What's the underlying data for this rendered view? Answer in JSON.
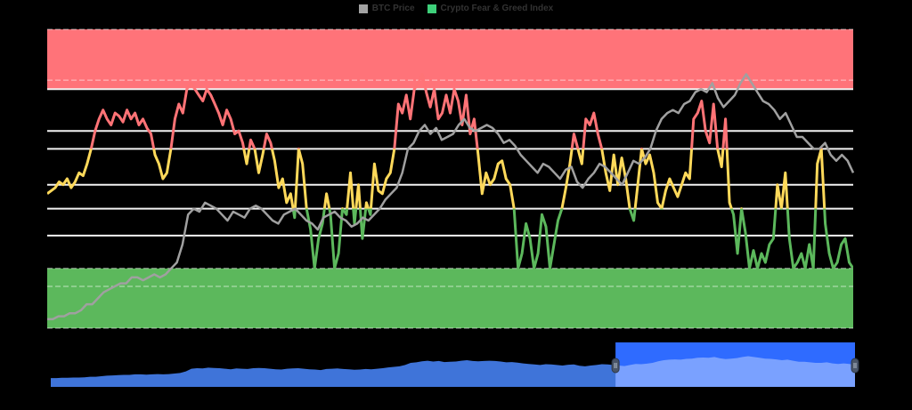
{
  "legend": [
    {
      "label": "BTC Price",
      "color": "#a3a3a3"
    },
    {
      "label": "Crypto Fear & Greed Index",
      "color": "#3ecf7a"
    }
  ],
  "colors": {
    "background": "#000000",
    "extreme_greed_band": "#ff7379",
    "extreme_fear_band": "#5cb85c",
    "greed_line": "#ff7376",
    "neutral_line": "#ffd95a",
    "fear_line": "#5cb85c",
    "btc_line": "#a0a0a0",
    "gridline": "#f2f2f2",
    "navigator_series": "#3f74d9",
    "navigator_selection": "#2f6bff",
    "navigator_selected_series": "#7aa1ff",
    "navigator_handle": "#4a5568"
  },
  "chart_data": {
    "type": "line",
    "title": "",
    "xlabel": "",
    "ylabel": "",
    "ylim": [
      0,
      100
    ],
    "grid": true,
    "legend_position": "top-center",
    "zones": [
      {
        "name": "Extreme Greed band",
        "from": 80,
        "to": 100,
        "color": "#ff7379"
      },
      {
        "name": "Extreme Fear band",
        "from": 0,
        "to": 20,
        "color": "#5cb85c"
      }
    ],
    "zone_line_colors": [
      {
        "range": [
          60,
          100
        ],
        "color": "#ff7376"
      },
      {
        "range": [
          40,
          60
        ],
        "color": "#ffd95a"
      },
      {
        "range": [
          0,
          40
        ],
        "color": "#5cb85c"
      }
    ],
    "gridlines": [
      80,
      66,
      60,
      48,
      40,
      31,
      20
    ],
    "series": [
      {
        "name": "Crypto Fear & Greed Index",
        "values": [
          45,
          46,
          47,
          49,
          48,
          50,
          47,
          49,
          52,
          51,
          55,
          60,
          66,
          70,
          73,
          70,
          68,
          72,
          71,
          69,
          73,
          70,
          72,
          68,
          70,
          67,
          65,
          58,
          55,
          50,
          52,
          60,
          70,
          75,
          72,
          80,
          82,
          80,
          78,
          76,
          80,
          78,
          75,
          72,
          68,
          73,
          70,
          65,
          66,
          62,
          55,
          63,
          60,
          52,
          58,
          65,
          62,
          56,
          47,
          50,
          42,
          45,
          37,
          60,
          55,
          40,
          33,
          20,
          30,
          35,
          45,
          38,
          20,
          25,
          40,
          38,
          52,
          35,
          48,
          30,
          42,
          38,
          55,
          46,
          45,
          50,
          52,
          60,
          75,
          72,
          78,
          70,
          80,
          82,
          85,
          79,
          74,
          80,
          70,
          72,
          78,
          72,
          80,
          76,
          68,
          78,
          65,
          70,
          58,
          45,
          52,
          48,
          50,
          55,
          56,
          50,
          48,
          40,
          20,
          25,
          35,
          30,
          20,
          25,
          38,
          34,
          20,
          28,
          36,
          40,
          47,
          55,
          65,
          60,
          55,
          70,
          68,
          72,
          65,
          60,
          52,
          46,
          58,
          48,
          57,
          50,
          40,
          36,
          48,
          60,
          55,
          58,
          52,
          42,
          40,
          46,
          50,
          47,
          44,
          48,
          52,
          50,
          70,
          72,
          76,
          66,
          62,
          75,
          60,
          54,
          70,
          42,
          38,
          25,
          40,
          32,
          20,
          26,
          20,
          25,
          22,
          28,
          30,
          48,
          40,
          52,
          30,
          20,
          22,
          25,
          20,
          28,
          20,
          55,
          60,
          35,
          25,
          20,
          22,
          28,
          30,
          22,
          20
        ],
        "note": "approximate visual reading, chronological left to right"
      },
      {
        "name": "BTC Price",
        "values": [
          3,
          3,
          4,
          4,
          5,
          5,
          6,
          8,
          8,
          10,
          12,
          13,
          14,
          15,
          15,
          17,
          17,
          16,
          17,
          18,
          17,
          18,
          20,
          22,
          28,
          38,
          40,
          39,
          42,
          41,
          40,
          38,
          36,
          39,
          38,
          37,
          40,
          41,
          40,
          38,
          36,
          35,
          38,
          39,
          40,
          38,
          36,
          35,
          33,
          37,
          38,
          39,
          37,
          36,
          34,
          35,
          37,
          36,
          38,
          40,
          43,
          45,
          47,
          52,
          60,
          62,
          66,
          68,
          65,
          67,
          63,
          64,
          65,
          68,
          70,
          67,
          66,
          67,
          68,
          67,
          65,
          62,
          63,
          61,
          58,
          56,
          54,
          52,
          55,
          54,
          52,
          50,
          53,
          54,
          49,
          47,
          50,
          52,
          55,
          54,
          52,
          50,
          48,
          52,
          56,
          55,
          57,
          60,
          66,
          70,
          72,
          73,
          72,
          75,
          76,
          79,
          80,
          79,
          82,
          77,
          74,
          76,
          78,
          82,
          85,
          82,
          79,
          76,
          75,
          73,
          70,
          72,
          68,
          64,
          64,
          62,
          60,
          60,
          62,
          58,
          56,
          58,
          56,
          52
        ],
        "note": "relative scale, approximate visual reading"
      }
    ],
    "navigator": {
      "selected_range_fraction": [
        0.7,
        1.0
      ]
    }
  }
}
